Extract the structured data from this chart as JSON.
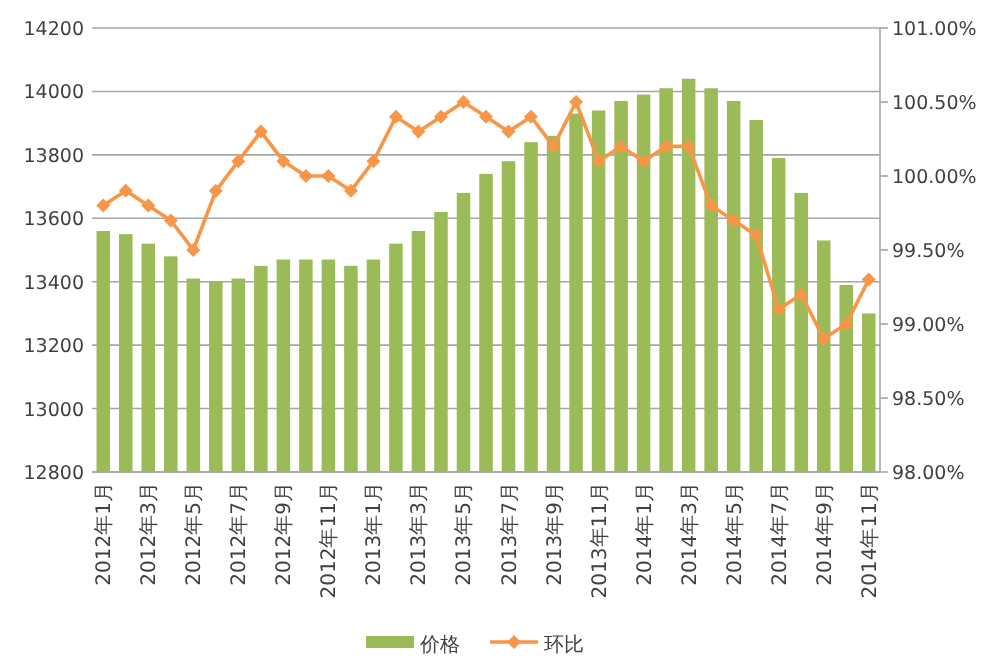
{
  "chart_data": {
    "type": "bar",
    "categories": [
      "2012年1月",
      null,
      "2012年3月",
      null,
      "2012年5月",
      null,
      "2012年7月",
      null,
      "2012年9月",
      null,
      "2012年11月",
      null,
      "2013年1月",
      null,
      "2013年3月",
      null,
      "2013年5月",
      null,
      "2013年7月",
      null,
      "2013年9月",
      null,
      "2013年11月",
      null,
      "2014年1月",
      null,
      "2014年3月",
      null,
      "2014年5月",
      null,
      "2014年7月",
      null,
      "2014年9月",
      null,
      "2014年11月"
    ],
    "series": [
      {
        "name": "价格",
        "color": "#9bbb59",
        "values": [
          13560,
          13550,
          13520,
          13480,
          13410,
          13400,
          13410,
          13450,
          13470,
          13470,
          13470,
          13450,
          13470,
          13520,
          13560,
          13620,
          13680,
          13740,
          13780,
          13840,
          13860,
          13930,
          13940,
          13970,
          13990,
          14010,
          14040,
          14010,
          13970,
          13910,
          13790,
          13680,
          13530,
          13390,
          13300
        ]
      },
      {
        "name": "环比",
        "type": "line",
        "axis": "y2",
        "color": "#f79646",
        "marker": "diamond",
        "values": [
          99.8,
          99.9,
          99.8,
          99.7,
          99.5,
          99.9,
          100.1,
          100.3,
          100.1,
          100.0,
          100.0,
          99.9,
          100.1,
          100.4,
          100.3,
          100.4,
          100.5,
          100.4,
          100.3,
          100.4,
          100.2,
          100.5,
          100.1,
          100.2,
          100.1,
          100.2,
          100.2,
          99.8,
          99.7,
          99.6,
          99.1,
          99.2,
          98.9,
          99.0,
          99.3
        ]
      }
    ],
    "ylim": [
      12800,
      14200
    ],
    "yticks": [
      12800,
      13000,
      13200,
      13400,
      13600,
      13800,
      14000,
      14200
    ],
    "y2lim": [
      98,
      101
    ],
    "y2ticks": [
      {
        "value": 98,
        "label": "98.00%"
      },
      {
        "value": 98.5,
        "label": "98.50%"
      },
      {
        "value": 99,
        "label": "99.00%"
      },
      {
        "value": 99.5,
        "label": "99.50%"
      },
      {
        "value": 100,
        "label": "100.00%"
      },
      {
        "value": 100.5,
        "label": "100.50%"
      },
      {
        "value": 101,
        "label": "101.00%"
      }
    ],
    "grid": "y",
    "legend": "bottom"
  }
}
